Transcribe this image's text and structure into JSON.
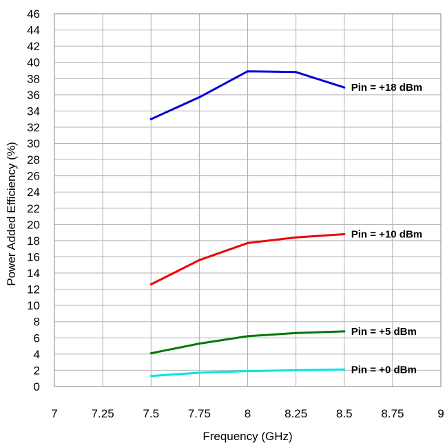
{
  "chart_data": {
    "type": "line",
    "title": "",
    "xlabel": "Frequency (GHz)",
    "ylabel": "Power Added Efficiency (%)",
    "xlim": [
      7,
      9
    ],
    "ylim": [
      0,
      46
    ],
    "x_ticks": [
      "7",
      "7.25",
      "7.5",
      "7.75",
      "8",
      "8.25",
      "8.5",
      "8.75",
      "9"
    ],
    "x_tick_values": [
      7,
      7.25,
      7.5,
      7.75,
      8,
      8.25,
      8.5,
      8.75,
      9
    ],
    "y_ticks": [
      "0",
      "2",
      "4",
      "6",
      "8",
      "10",
      "12",
      "14",
      "16",
      "18",
      "20",
      "22",
      "24",
      "26",
      "28",
      "30",
      "32",
      "34",
      "36",
      "38",
      "40",
      "42",
      "44",
      "46"
    ],
    "y_tick_values": [
      0,
      2,
      4,
      6,
      8,
      10,
      12,
      14,
      16,
      18,
      20,
      22,
      24,
      26,
      28,
      30,
      32,
      34,
      36,
      38,
      40,
      42,
      44,
      46
    ],
    "grid": true,
    "series": [
      {
        "name": "Pin = +18 dBm",
        "color": "#0000dd",
        "x": [
          7.5,
          7.75,
          8,
          8.25,
          8.5
        ],
        "values": [
          33.0,
          35.7,
          38.9,
          38.8,
          36.9
        ]
      },
      {
        "name": "Pin = +10 dBm",
        "color": "#ee0000",
        "x": [
          7.5,
          7.75,
          8,
          8.25,
          8.5
        ],
        "values": [
          12.6,
          15.6,
          17.7,
          18.4,
          18.8
        ]
      },
      {
        "name": "Pin = +5 dBm",
        "color": "#007700",
        "x": [
          7.5,
          7.75,
          8,
          8.25,
          8.5
        ],
        "values": [
          4.1,
          5.3,
          6.2,
          6.6,
          6.8
        ]
      },
      {
        "name": "Pin = +0 dBm",
        "color": "#00e5e5",
        "x": [
          7.5,
          7.75,
          8,
          8.25,
          8.5
        ],
        "values": [
          1.3,
          1.7,
          1.9,
          2.0,
          2.1
        ]
      }
    ]
  }
}
